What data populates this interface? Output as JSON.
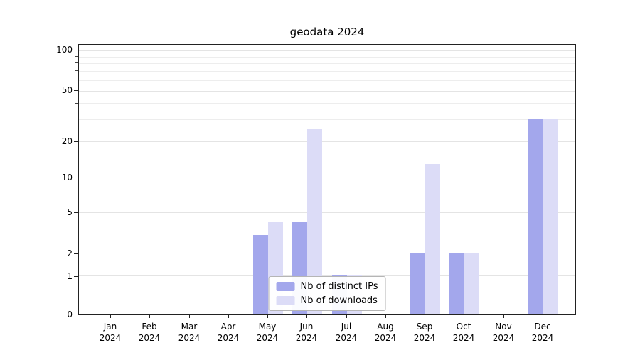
{
  "chart_data": {
    "type": "bar",
    "title": "geodata 2024",
    "x_year": "2024",
    "categories": [
      "Jan",
      "Feb",
      "Mar",
      "Apr",
      "May",
      "Jun",
      "Jul",
      "Aug",
      "Sep",
      "Oct",
      "Nov",
      "Dec"
    ],
    "series": [
      {
        "name": "Nb of distinct IPs",
        "color": "#a3a7ec",
        "values": [
          0,
          0,
          0,
          0,
          3,
          4,
          1,
          0,
          2,
          2,
          0,
          30
        ]
      },
      {
        "name": "Nb of downloads",
        "color": "#dcdcf7",
        "values": [
          0,
          0,
          0,
          0,
          4,
          25,
          1,
          0,
          13,
          2,
          0,
          30
        ]
      }
    ],
    "yticks": [
      0,
      1,
      2,
      5,
      10,
      20,
      50,
      100
    ],
    "ylim": [
      0,
      110
    ],
    "grid": true,
    "legend_position": "lower center",
    "scale": "log-like",
    "background_color": "#ffffff",
    "grid_color": "#e4e4e4"
  }
}
